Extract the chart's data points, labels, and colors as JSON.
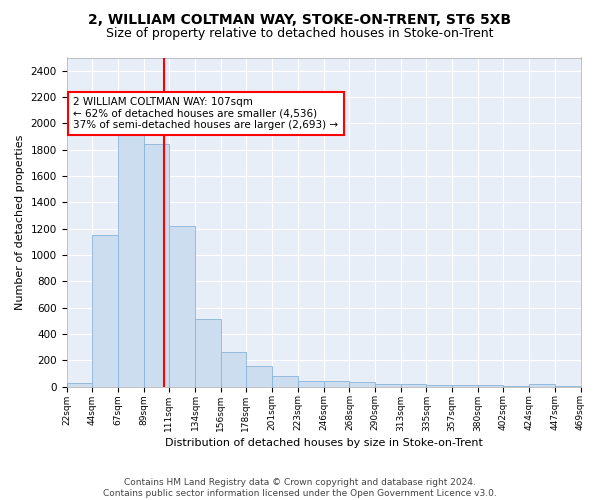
{
  "title1": "2, WILLIAM COLTMAN WAY, STOKE-ON-TRENT, ST6 5XB",
  "title2": "Size of property relative to detached houses in Stoke-on-Trent",
  "xlabel": "Distribution of detached houses by size in Stoke-on-Trent",
  "ylabel": "Number of detached properties",
  "bar_edges": [
    22,
    44,
    67,
    89,
    111,
    134,
    156,
    178,
    201,
    223,
    246,
    268,
    290,
    313,
    335,
    357,
    380,
    402,
    424,
    447,
    469
  ],
  "bar_heights": [
    30,
    1150,
    1950,
    1840,
    1220,
    510,
    265,
    155,
    80,
    45,
    40,
    35,
    20,
    20,
    15,
    10,
    8,
    5,
    20,
    5
  ],
  "bar_color": "#ccddf0",
  "bar_edgecolor": "#89b4d9",
  "red_line_x": 107,
  "annotation_text": "2 WILLIAM COLTMAN WAY: 107sqm\n← 62% of detached houses are smaller (4,536)\n37% of semi-detached houses are larger (2,693) →",
  "annotation_box_color": "white",
  "annotation_box_edgecolor": "red",
  "ylim": [
    0,
    2500
  ],
  "yticks": [
    0,
    200,
    400,
    600,
    800,
    1000,
    1200,
    1400,
    1600,
    1800,
    2000,
    2200,
    2400
  ],
  "tick_labels": [
    "22sqm",
    "44sqm",
    "67sqm",
    "89sqm",
    "111sqm",
    "134sqm",
    "156sqm",
    "178sqm",
    "201sqm",
    "223sqm",
    "246sqm",
    "268sqm",
    "290sqm",
    "313sqm",
    "335sqm",
    "357sqm",
    "380sqm",
    "402sqm",
    "424sqm",
    "447sqm",
    "469sqm"
  ],
  "footnote": "Contains HM Land Registry data © Crown copyright and database right 2024.\nContains public sector information licensed under the Open Government Licence v3.0.",
  "fig_bg_color": "#ffffff",
  "plot_bg_color": "#e8eef8",
  "grid_color": "#ffffff",
  "title1_fontsize": 10,
  "title2_fontsize": 9,
  "ylabel_fontsize": 8,
  "xlabel_fontsize": 8,
  "annot_fontsize": 7.5,
  "footnote_fontsize": 6.5,
  "footnote_color": "#444444"
}
